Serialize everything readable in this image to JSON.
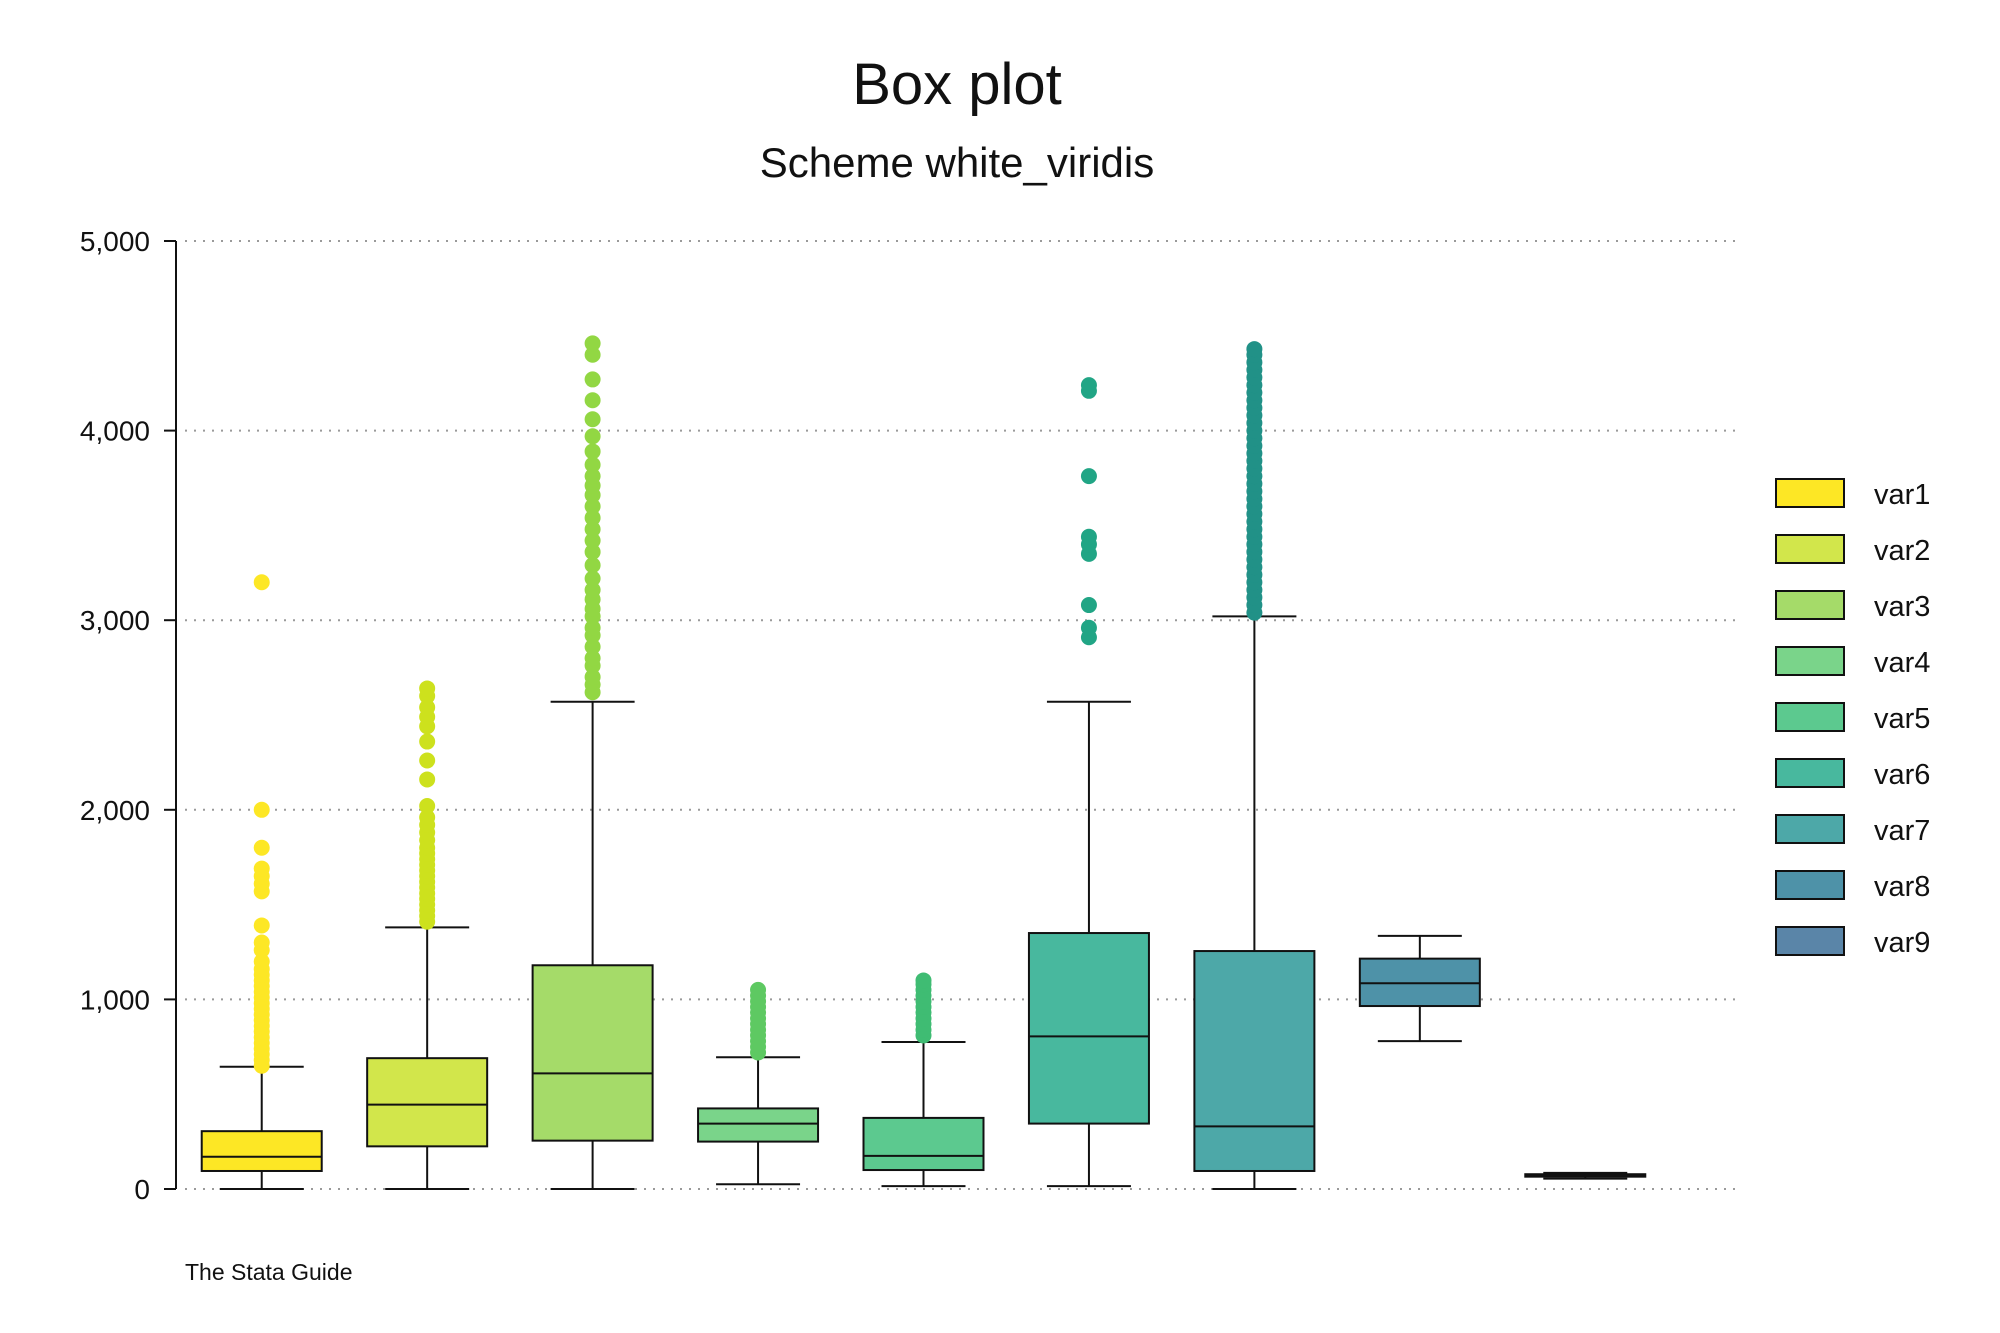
{
  "chart_data": {
    "type": "box",
    "title": "Box plot",
    "subtitle": "Scheme white_viridis",
    "note": "The Stata Guide",
    "xlabel": "",
    "ylabel": "",
    "ylim": [
      0,
      5000
    ],
    "yticks": [
      0,
      1000,
      2000,
      3000,
      4000,
      5000
    ],
    "ytick_labels": [
      "0",
      "1,000",
      "2,000",
      "3,000",
      "4,000",
      "5,000"
    ],
    "grid": "horizontal dotted",
    "legend_position": "right",
    "series": [
      {
        "name": "var1",
        "color": "#fde725",
        "outlier_color": "#fde725",
        "whisker_low": 0,
        "q1": 95,
        "median": 170,
        "q3": 305,
        "whisker_high": 645,
        "outliers": [
          650,
          680,
          710,
          740,
          770,
          800,
          830,
          860,
          890,
          920,
          950,
          980,
          1010,
          1040,
          1070,
          1100,
          1130,
          1160,
          1200,
          1260,
          1300,
          1390,
          1570,
          1610,
          1650,
          1690,
          1800,
          2000,
          3200
        ]
      },
      {
        "name": "var2",
        "color": "#d2e64b",
        "outlier_color": "#cde11d",
        "whisker_low": 0,
        "q1": 225,
        "median": 445,
        "q3": 690,
        "whisker_high": 1380,
        "outliers": [
          1410,
          1440,
          1470,
          1500,
          1530,
          1560,
          1590,
          1620,
          1650,
          1680,
          1710,
          1740,
          1770,
          1800,
          1840,
          1880,
          1920,
          1960,
          2020,
          2160,
          2260,
          2360,
          2440,
          2490,
          2540,
          2600,
          2640
        ]
      },
      {
        "name": "var3",
        "color": "#a5db69",
        "outlier_color": "#92d743",
        "whisker_low": 0,
        "q1": 255,
        "median": 610,
        "q3": 1180,
        "whisker_high": 2570,
        "outliers": [
          2620,
          2660,
          2700,
          2760,
          2800,
          2860,
          2920,
          2960,
          3020,
          3060,
          3110,
          3160,
          3220,
          3290,
          3360,
          3420,
          3480,
          3540,
          3600,
          3660,
          3710,
          3760,
          3820,
          3890,
          3970,
          4060,
          4160,
          4270,
          4400,
          4460
        ]
      },
      {
        "name": "var4",
        "color": "#7ad48a",
        "outlier_color": "#5ec962",
        "whisker_low": 25,
        "q1": 250,
        "median": 345,
        "q3": 425,
        "whisker_high": 695,
        "outliers": [
          720,
          750,
          780,
          810,
          840,
          870,
          900,
          930,
          960,
          990,
          1020,
          1050
        ]
      },
      {
        "name": "var5",
        "color": "#5cc98f",
        "outlier_color": "#3fbc73",
        "whisker_low": 15,
        "q1": 100,
        "median": 175,
        "q3": 375,
        "whisker_high": 775,
        "outliers": [
          810,
          840,
          870,
          900,
          930,
          960,
          990,
          1020,
          1050,
          1080,
          1100
        ]
      },
      {
        "name": "var6",
        "color": "#48b89e",
        "outlier_color": "#21a585",
        "whisker_low": 15,
        "q1": 345,
        "median": 805,
        "q3": 1350,
        "whisker_high": 2570,
        "outliers": [
          2910,
          2960,
          3080,
          3350,
          3400,
          3440,
          3760,
          4210,
          4240
        ]
      },
      {
        "name": "var7",
        "color": "#4da8a8",
        "outlier_color": "#219187",
        "whisker_low": 0,
        "q1": 95,
        "median": 330,
        "q3": 1255,
        "whisker_high": 3020,
        "outliers": [
          3040,
          3080,
          3120,
          3160,
          3200,
          3240,
          3280,
          3320,
          3360,
          3400,
          3440,
          3480,
          3520,
          3560,
          3600,
          3640,
          3680,
          3720,
          3760,
          3800,
          3840,
          3880,
          3920,
          3960,
          4000,
          4040,
          4080,
          4120,
          4160,
          4200,
          4240,
          4280,
          4320,
          4360,
          4400,
          4430
        ]
      },
      {
        "name": "var8",
        "color": "#4e92a8",
        "outlier_color": "#2a788e",
        "whisker_low": 780,
        "q1": 965,
        "median": 1085,
        "q3": 1215,
        "whisker_high": 1335,
        "outliers": []
      },
      {
        "name": "var9",
        "color": "#5a85a8",
        "outlier_color": "#355f8d",
        "whisker_low": 55,
        "q1": 65,
        "median": 72,
        "q3": 78,
        "whisker_high": 85,
        "outliers": []
      }
    ]
  }
}
